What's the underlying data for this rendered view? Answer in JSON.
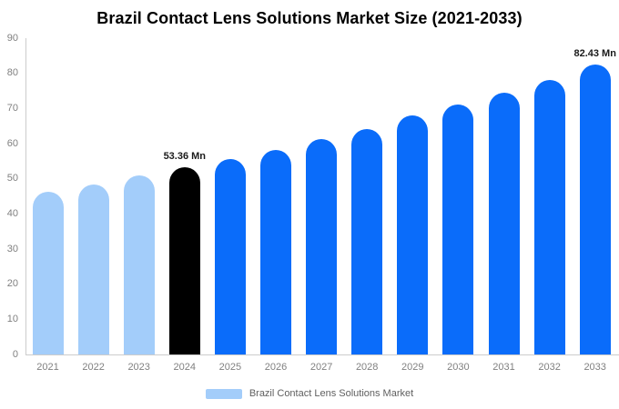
{
  "colors": {
    "historical": "#A3CDFA",
    "base_year": "#000000",
    "forecast": "#0A6CFA",
    "axis_line": "#CCCCCC",
    "tick_text": "#808080",
    "annotation_text": "#1A1A1A",
    "legend_text": "#5F5F5F",
    "background": "#FFFFFF"
  },
  "chart_data": {
    "type": "bar",
    "title": "Brazil Contact Lens Solutions Market Size (2021-2033)",
    "unit": "Mn",
    "xlabel": "",
    "ylabel": "",
    "ylim": [
      0,
      90
    ],
    "yticks": [
      0,
      10,
      20,
      30,
      40,
      50,
      60,
      70,
      80,
      90
    ],
    "grid": false,
    "legend": "Brazil Contact Lens Solutions Market",
    "legend_position": "bottom",
    "categories": [
      "2021",
      "2022",
      "2023",
      "2024",
      "2025",
      "2026",
      "2027",
      "2028",
      "2029",
      "2030",
      "2031",
      "2032",
      "2033"
    ],
    "values": [
      46.2,
      48.4,
      51.0,
      53.36,
      55.7,
      58.3,
      61.2,
      64.2,
      67.9,
      71.0,
      74.5,
      78.2,
      82.43
    ],
    "bar_color_keys": [
      "historical",
      "historical",
      "historical",
      "base_year",
      "forecast",
      "forecast",
      "forecast",
      "forecast",
      "forecast",
      "forecast",
      "forecast",
      "forecast",
      "forecast"
    ],
    "value_labels": {
      "2024": "53.36 Mn",
      "2033": "82.43 Mn"
    }
  }
}
